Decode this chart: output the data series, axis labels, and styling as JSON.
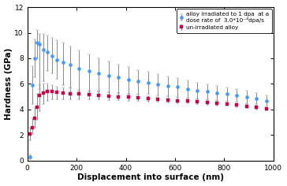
{
  "title": "",
  "xlabel": "Displacement into surface (nm)",
  "ylabel": "Hardness (GPa)",
  "xlim": [
    0,
    1000
  ],
  "ylim": [
    0,
    12
  ],
  "yticks": [
    0,
    2,
    4,
    6,
    8,
    10,
    12
  ],
  "xticks": [
    0,
    200,
    400,
    600,
    800,
    1000
  ],
  "legend_irradiated": "alloy irradiated to 1 dpa  at a\ndose rate of  3.0*10⁻⁴dpa/s",
  "legend_unirradiated": "un-irradiated alloy",
  "irradiated_color": "#4499ff",
  "unirradiated_color": "#cc0044",
  "irradiated_x": [
    10,
    20,
    30,
    40,
    50,
    65,
    80,
    100,
    120,
    145,
    175,
    210,
    250,
    290,
    330,
    370,
    410,
    450,
    490,
    530,
    570,
    610,
    650,
    690,
    730,
    770,
    810,
    850,
    890,
    930,
    970
  ],
  "irradiated_y": [
    0.3,
    5.9,
    8.0,
    9.2,
    9.1,
    8.7,
    8.5,
    8.2,
    7.9,
    7.7,
    7.5,
    7.2,
    7.0,
    6.8,
    6.65,
    6.5,
    6.35,
    6.2,
    6.1,
    5.95,
    5.85,
    5.75,
    5.6,
    5.5,
    5.4,
    5.3,
    5.2,
    5.1,
    5.0,
    4.85,
    4.7
  ],
  "irradiated_err_up": [
    0.2,
    1.5,
    1.5,
    1.0,
    0.8,
    1.2,
    1.3,
    1.4,
    1.5,
    1.5,
    1.4,
    1.4,
    1.3,
    1.2,
    1.1,
    1.0,
    0.95,
    0.9,
    0.85,
    0.8,
    0.75,
    0.7,
    0.65,
    0.6,
    0.55,
    0.55,
    0.5,
    0.5,
    0.45,
    0.42,
    0.38
  ],
  "irradiated_err_dn": [
    0.2,
    1.5,
    1.5,
    1.2,
    3.5,
    2.5,
    1.5,
    1.4,
    1.5,
    1.8,
    1.8,
    1.8,
    1.6,
    1.4,
    1.3,
    1.2,
    1.1,
    1.0,
    0.9,
    0.85,
    0.8,
    0.75,
    0.7,
    0.65,
    0.6,
    0.55,
    0.55,
    0.5,
    0.5,
    0.45,
    0.4
  ],
  "unirradiated_x": [
    10,
    20,
    30,
    40,
    50,
    65,
    80,
    100,
    120,
    145,
    175,
    210,
    250,
    290,
    330,
    370,
    410,
    450,
    490,
    530,
    570,
    610,
    650,
    690,
    730,
    770,
    810,
    850,
    890,
    930,
    970
  ],
  "unirradiated_y": [
    2.1,
    2.6,
    3.3,
    4.2,
    5.1,
    5.3,
    5.4,
    5.4,
    5.35,
    5.3,
    5.25,
    5.2,
    5.15,
    5.1,
    5.05,
    5.0,
    4.95,
    4.9,
    4.85,
    4.8,
    4.75,
    4.7,
    4.65,
    4.6,
    4.55,
    4.5,
    4.45,
    4.35,
    4.25,
    4.15,
    4.05
  ],
  "unirradiated_err_up": [
    0.5,
    0.7,
    0.9,
    1.0,
    0.8,
    0.7,
    0.6,
    0.5,
    0.45,
    0.4,
    0.38,
    0.35,
    0.32,
    0.3,
    0.28,
    0.27,
    0.25,
    0.24,
    0.22,
    0.2,
    0.2,
    0.2,
    0.18,
    0.18,
    0.17,
    0.17,
    0.17,
    0.16,
    0.16,
    0.15,
    0.14
  ],
  "unirradiated_err_dn": [
    0.5,
    0.5,
    0.7,
    1.0,
    1.2,
    0.9,
    0.7,
    0.6,
    0.55,
    0.5,
    0.45,
    0.4,
    0.35,
    0.32,
    0.3,
    0.28,
    0.26,
    0.25,
    0.23,
    0.22,
    0.2,
    0.2,
    0.18,
    0.18,
    0.17,
    0.17,
    0.17,
    0.16,
    0.16,
    0.15,
    0.14
  ]
}
